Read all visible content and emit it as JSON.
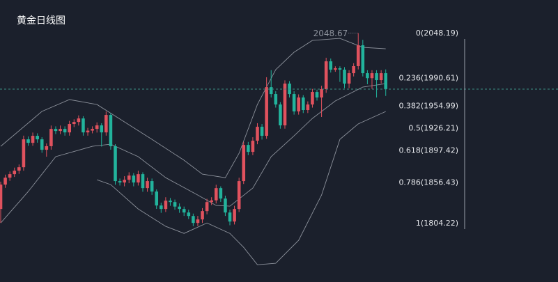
{
  "chart_data": {
    "type": "candlestick",
    "title": "黄金日线图",
    "up_color": "#e0525e",
    "down_color": "#22b39c",
    "band_color": "#8d929c",
    "ylim": [
      1729.2,
      2091.1
    ],
    "candles": [
      [
        1822.9,
        1858,
        1805,
        1854.2
      ],
      [
        1854.2,
        1867,
        1850,
        1863.1
      ],
      [
        1863.1,
        1871,
        1859,
        1867.6
      ],
      [
        1867.6,
        1876,
        1864,
        1872.1
      ],
      [
        1872.1,
        1880,
        1868,
        1876.5
      ],
      [
        1876.5,
        1917,
        1872,
        1912.3
      ],
      [
        1912.3,
        1916,
        1904,
        1907.8
      ],
      [
        1907.8,
        1921,
        1904,
        1916.8
      ],
      [
        1916.8,
        1920,
        1908,
        1912.3
      ],
      [
        1912.3,
        1915,
        1895,
        1898.9
      ],
      [
        1898.9,
        1907,
        1890,
        1903.5
      ],
      [
        1903.5,
        1930,
        1899,
        1925.7
      ],
      [
        1925.7,
        1929,
        1919,
        1923.0
      ],
      [
        1923.0,
        1930,
        1919,
        1925.7
      ],
      [
        1925.7,
        1929,
        1917,
        1921.2
      ],
      [
        1921.2,
        1936,
        1917,
        1932.0
      ],
      [
        1932.0,
        1938,
        1928,
        1934.6
      ],
      [
        1934.6,
        1943,
        1930,
        1939.1
      ],
      [
        1939.1,
        1942,
        1917,
        1921.2
      ],
      [
        1921.2,
        1927,
        1917,
        1923.5
      ],
      [
        1923.5,
        1929,
        1920,
        1925.7
      ],
      [
        1925.7,
        1934,
        1921,
        1930.2
      ],
      [
        1930.2,
        1933,
        1903,
        1921.2
      ],
      [
        1921.2,
        1948,
        1917,
        1943.6
      ],
      [
        1943.6,
        1946,
        1899,
        1903.4
      ],
      [
        1903.4,
        1906,
        1854,
        1858.7
      ],
      [
        1858.7,
        1862,
        1853,
        1856.9
      ],
      [
        1856.9,
        1865,
        1852,
        1860.4
      ],
      [
        1860.4,
        1870,
        1856,
        1865.8
      ],
      [
        1865.8,
        1869,
        1852,
        1856.9
      ],
      [
        1856.9,
        1872,
        1853,
        1867.6
      ],
      [
        1867.6,
        1870,
        1845,
        1849.7
      ],
      [
        1849.7,
        1863,
        1845,
        1858.7
      ],
      [
        1858.7,
        1862,
        1841,
        1845.3
      ],
      [
        1845.3,
        1848,
        1823,
        1827.4
      ],
      [
        1827.4,
        1831,
        1818,
        1822.9
      ],
      [
        1822.9,
        1838,
        1819,
        1833.6
      ],
      [
        1833.6,
        1837,
        1827,
        1831.8
      ],
      [
        1831.8,
        1835,
        1822,
        1826.0
      ],
      [
        1826.0,
        1830,
        1818,
        1822.9
      ],
      [
        1822.9,
        1826,
        1814,
        1818.4
      ],
      [
        1818.4,
        1822,
        1810,
        1813.9
      ],
      [
        1813.9,
        1817,
        1801,
        1805.0
      ],
      [
        1805.0,
        1814,
        1801,
        1809.5
      ],
      [
        1809.5,
        1824,
        1805,
        1820.2
      ],
      [
        1820.2,
        1836,
        1816,
        1831.8
      ],
      [
        1831.8,
        1838,
        1828,
        1834.0
      ],
      [
        1834.0,
        1854,
        1830,
        1849.7
      ],
      [
        1849.7,
        1852,
        1832,
        1836.3
      ],
      [
        1836.3,
        1840,
        1814,
        1818.4
      ],
      [
        1818.4,
        1822,
        1802,
        1806.8
      ],
      [
        1806.8,
        1827,
        1803,
        1822.9
      ],
      [
        1822.9,
        1863,
        1819,
        1858.7
      ],
      [
        1858.7,
        1909,
        1855,
        1905.1
      ],
      [
        1905.1,
        1909,
        1892,
        1896.2
      ],
      [
        1896.2,
        1915,
        1892,
        1910.5
      ],
      [
        1910.5,
        1933,
        1906,
        1928.4
      ],
      [
        1928.4,
        1932,
        1912,
        1916.8
      ],
      [
        1916.8,
        1992,
        1913,
        1979.3
      ],
      [
        1979.3,
        2001,
        1966,
        1970.4
      ],
      [
        1970.4,
        1974,
        1953,
        1957.0
      ],
      [
        1957.0,
        1960,
        1926,
        1930.2
      ],
      [
        1930.2,
        1988,
        1926,
        1983.8
      ],
      [
        1983.8,
        1987,
        1966,
        1970.4
      ],
      [
        1970.4,
        1974,
        1944,
        1948.1
      ],
      [
        1948.1,
        1970,
        1944,
        1966.0
      ],
      [
        1966.0,
        1969,
        1946,
        1949.9
      ],
      [
        1949.9,
        1961,
        1946,
        1957.0
      ],
      [
        1957.0,
        1977,
        1953,
        1973.1
      ],
      [
        1973.1,
        1976,
        1962,
        1966.0
      ],
      [
        1966.0,
        1981,
        1941,
        1976.7
      ],
      [
        1976.7,
        2017,
        1972,
        2012.4
      ],
      [
        2012.4,
        2016,
        1998,
        2001.7
      ],
      [
        2001.7,
        2006,
        1999,
        2003.5
      ],
      [
        2003.5,
        2006,
        1986,
        2001.7
      ],
      [
        2001.7,
        2005,
        1978,
        1983.8
      ],
      [
        1983.8,
        2001,
        1978,
        1997.2
      ],
      [
        1997.2,
        2010,
        1993,
        2006.2
      ],
      [
        2006.2,
        2048.67,
        2002,
        2033.0
      ],
      [
        2033.0,
        2040,
        1993,
        1997.2
      ],
      [
        1997.2,
        2001,
        1983,
        1990.8
      ],
      [
        1990.8,
        2001,
        1977,
        1997.2
      ],
      [
        1997.2,
        2001,
        1966,
        1988.3
      ],
      [
        1988.3,
        2001,
        1984,
        1997.2
      ],
      [
        1997.2,
        2002,
        1968,
        1976.7
      ]
    ],
    "bands": [
      {
        "x": [
          0,
          9,
          15,
          21,
          27,
          33,
          40,
          44,
          49,
          52,
          56,
          60,
          64,
          68,
          74,
          79,
          84
        ],
        "values": [
          1903.4,
          1948.1,
          1963.3,
          1957.0,
          1934.6,
          1912.3,
          1885.5,
          1867.6,
          1863.1,
          1894.4,
          1957.0,
          2001.7,
          2024.1,
          2039.2,
          2041.9,
          2030.3,
          2028.5
        ]
      },
      {
        "x": [
          0,
          6,
          12,
          20,
          24,
          30,
          36,
          43,
          47,
          50,
          55,
          59,
          64,
          68,
          73,
          79,
          84
        ],
        "values": [
          1805.0,
          1845.3,
          1890.0,
          1903.4,
          1906.0,
          1890.0,
          1863.1,
          1840.8,
          1827.4,
          1826.5,
          1849.7,
          1890.0,
          1916.8,
          1939.1,
          1961.5,
          1979.4,
          1983.8
        ]
      },
      {
        "x": [
          21,
          24,
          30,
          36,
          40,
          45,
          50,
          53,
          56,
          60,
          65,
          70,
          74,
          78,
          84
        ],
        "values": [
          1860.4,
          1854.2,
          1822.9,
          1800.6,
          1791.6,
          1805.0,
          1791.6,
          1773.7,
          1751.4,
          1753.2,
          1782.7,
          1840.8,
          1912.3,
          1932.0,
          1948.0
        ]
      }
    ],
    "fib_levels": [
      {
        "value": 2048.19,
        "label": "0(2048.19)"
      },
      {
        "value": 1990.61,
        "label": "0.236(1990.61)"
      },
      {
        "value": 1954.99,
        "label": "0.382(1954.99)"
      },
      {
        "value": 1926.21,
        "label": "0.5(1926.21)"
      },
      {
        "value": 1897.42,
        "label": "0.618(1897.42)"
      },
      {
        "value": 1856.43,
        "label": "0.786(1856.43)"
      },
      {
        "value": 1804.22,
        "label": "1(1804.22)"
      }
    ]
  }
}
